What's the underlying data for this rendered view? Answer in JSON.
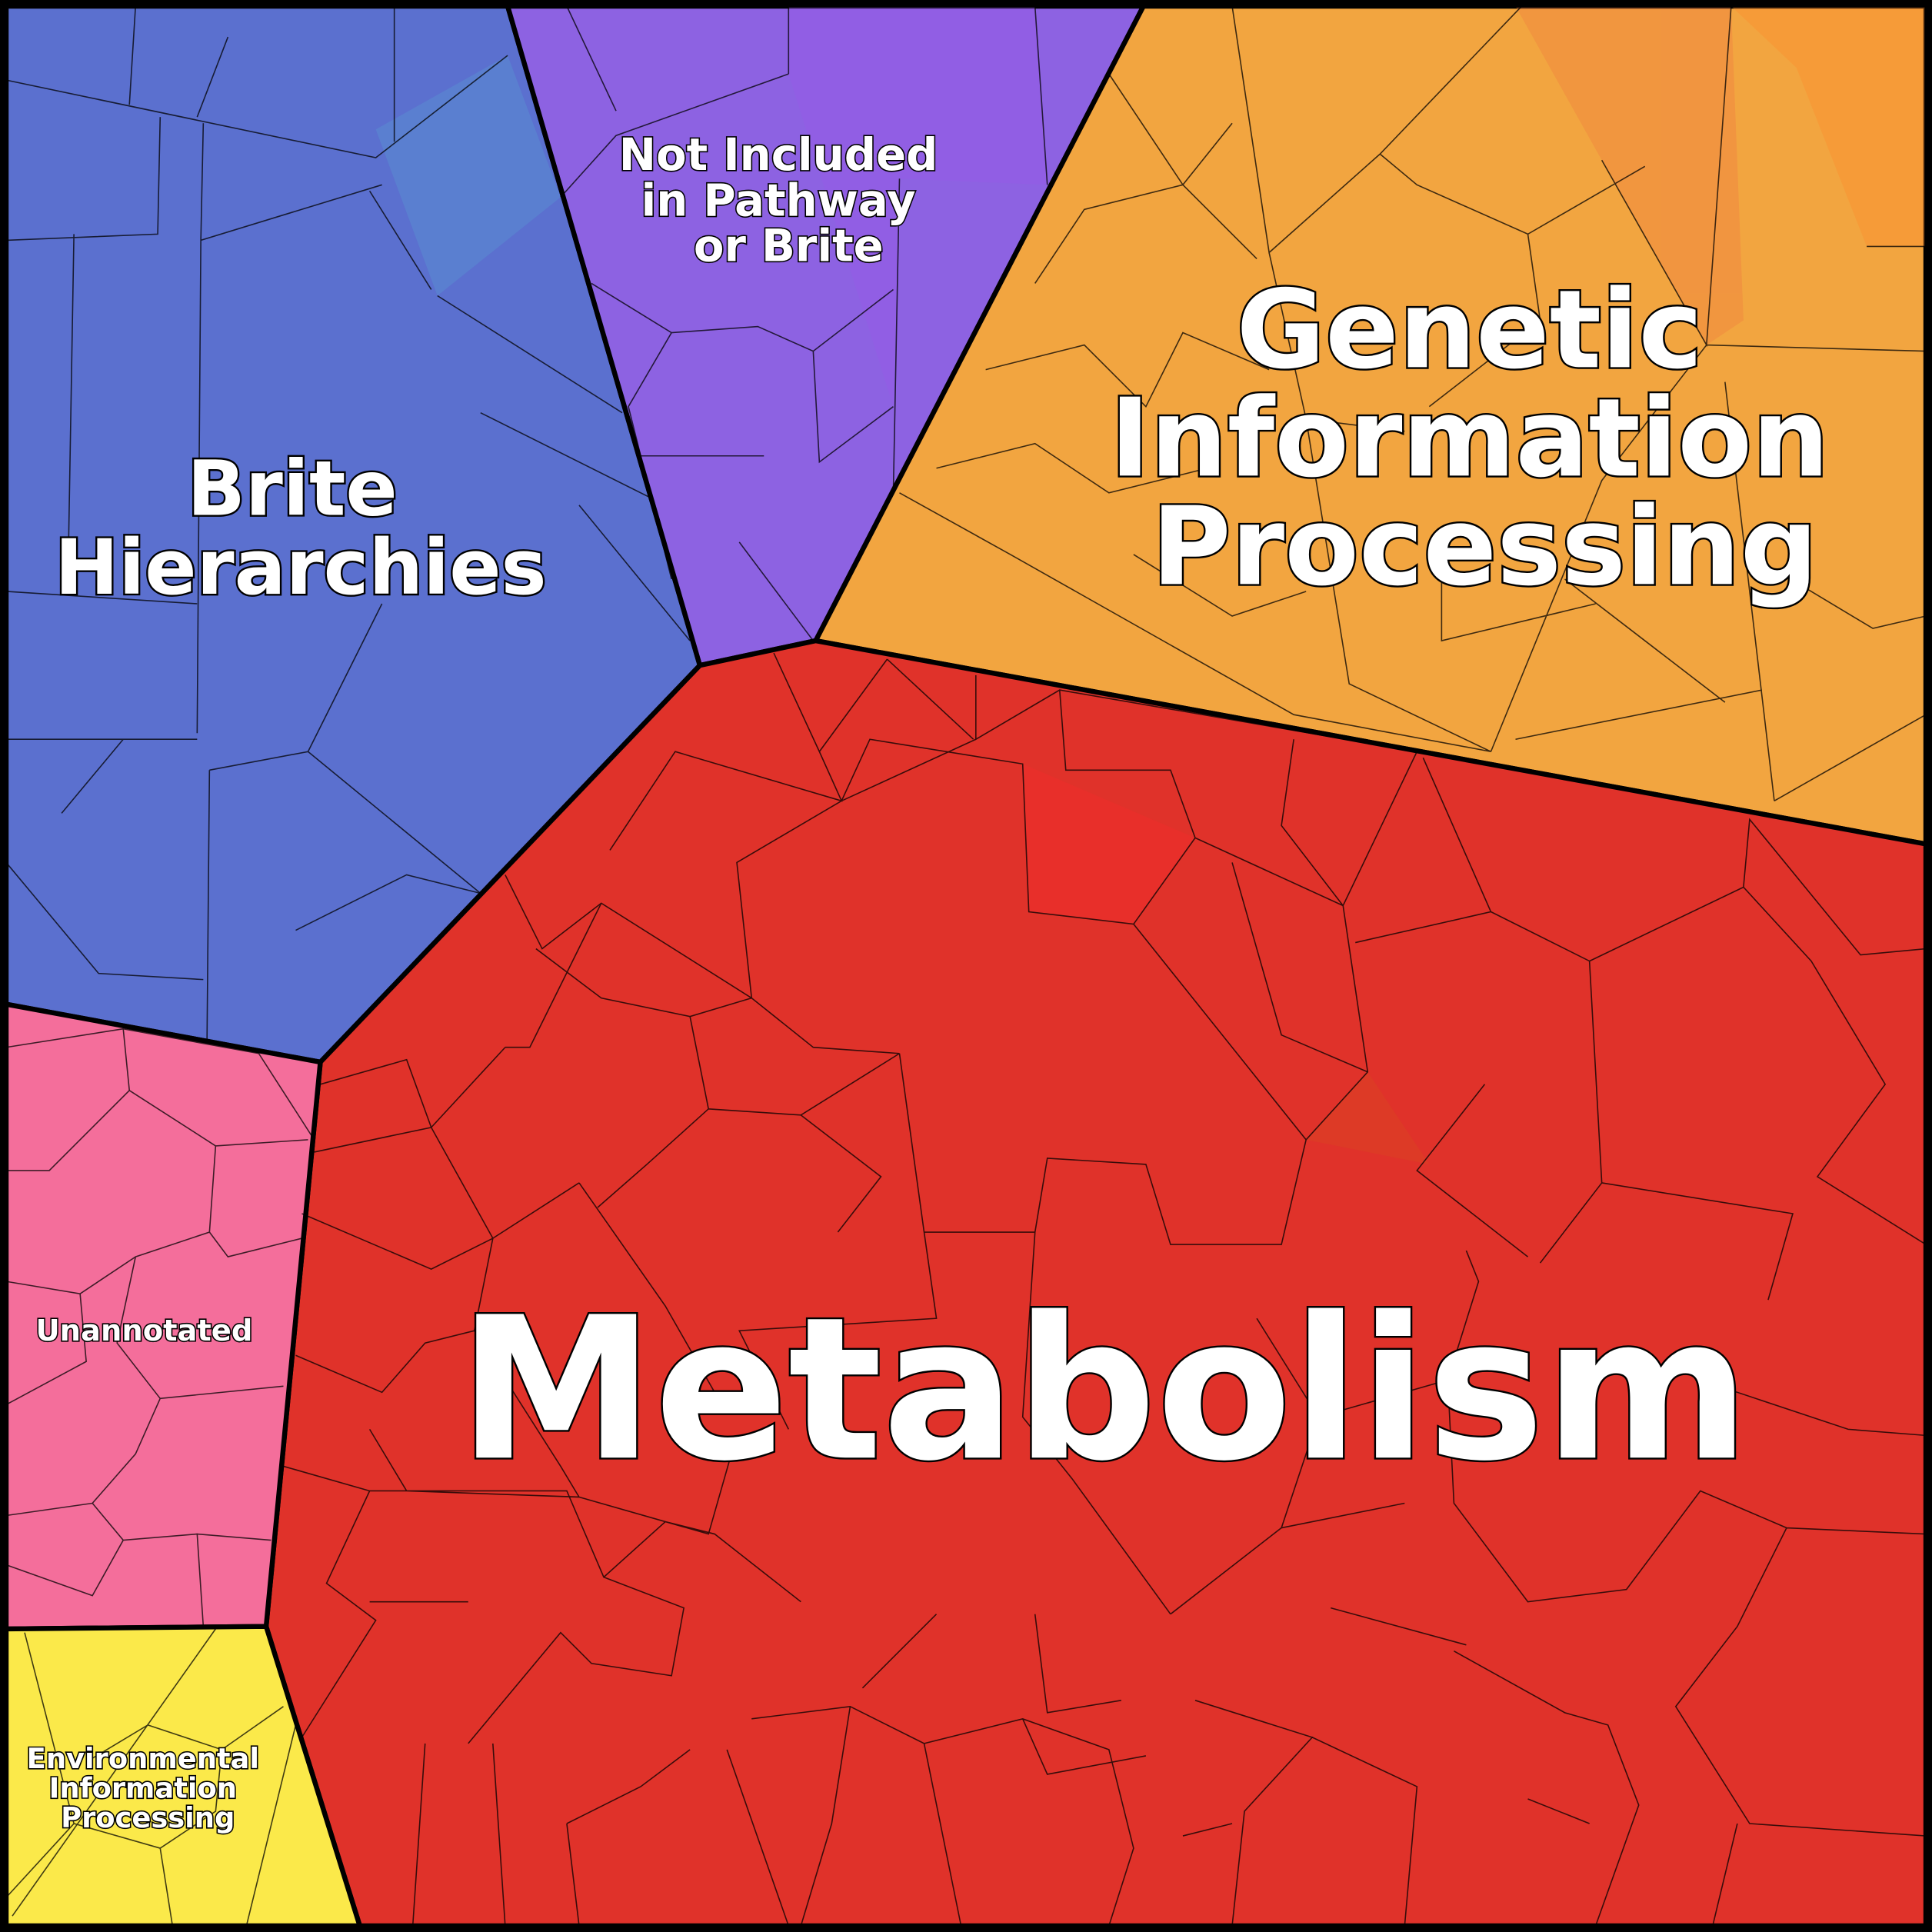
{
  "regions": [
    {
      "id": "brite",
      "label_lines": [
        "Brite",
        "Hierarchies"
      ],
      "color": "#5b70cf"
    },
    {
      "id": "not-included",
      "label_lines": [
        "Not Included",
        "in Pathway",
        "or Brite"
      ],
      "color": "#8d62e2"
    },
    {
      "id": "genetic",
      "label_lines": [
        "Genetic",
        "Information",
        "Processing"
      ],
      "color": "#f2a540"
    },
    {
      "id": "metabolism",
      "label_lines": [
        "Metabolism"
      ],
      "color": "#e0322a"
    },
    {
      "id": "unannotated",
      "label_lines": [
        "Unannotated"
      ],
      "color": "#f46e9b"
    },
    {
      "id": "environmental",
      "label_lines": [
        "Environmental",
        "Information",
        "Processing"
      ],
      "color": "#fbe94a"
    }
  ]
}
